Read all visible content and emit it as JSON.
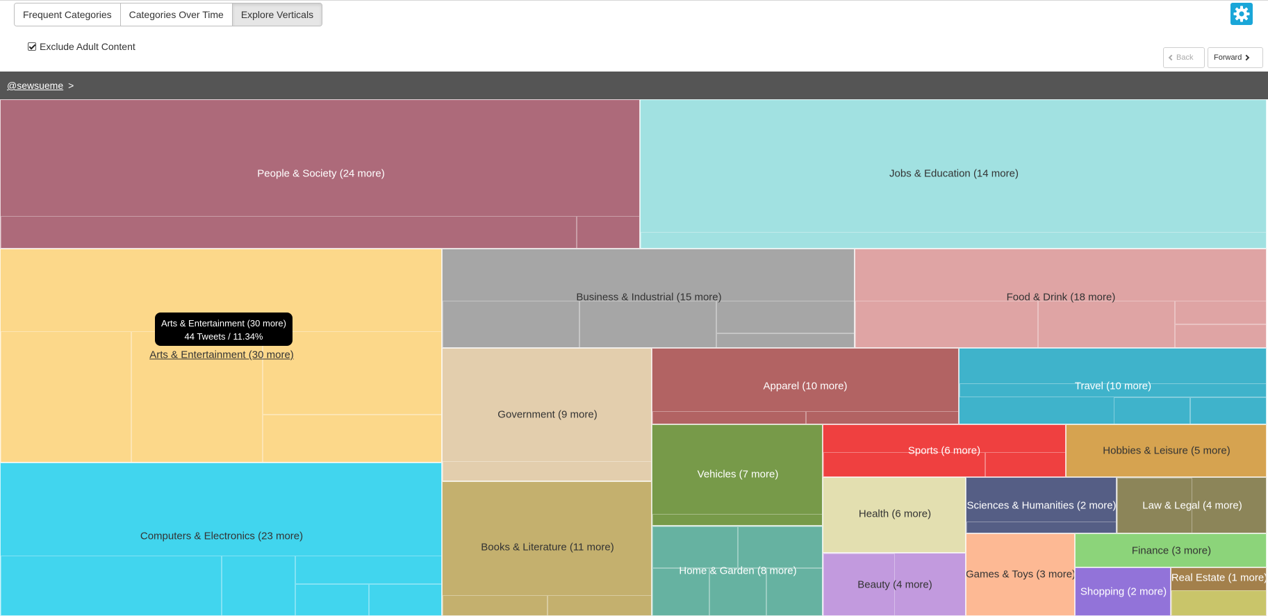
{
  "tabs": [
    {
      "label": "Frequent Categories",
      "active": false
    },
    {
      "label": "Categories Over Time",
      "active": false
    },
    {
      "label": "Explore Verticals",
      "active": true
    }
  ],
  "settings": {
    "icon": "gear-icon",
    "color": "#1aa6d8"
  },
  "filter": {
    "label": "Exclude Adult Content",
    "checked": true
  },
  "nav": {
    "back": "Back",
    "forward": "Forward"
  },
  "breadcrumb": {
    "user": "@sewsueme",
    "separator": ">"
  },
  "tooltip": {
    "title": "Arts & Entertainment (30 more)",
    "stats": "44 Tweets / 11.34%"
  },
  "chart_data": {
    "type": "treemap",
    "cells": [
      {
        "label": "People & Society (24 more)",
        "color": "#ad6a7a"
      },
      {
        "label": "Jobs & Education (14 more)",
        "color": "#a1e1e1"
      },
      {
        "label": "Arts & Entertainment (30 more)",
        "color": "#fcd88a",
        "tooltip": "44 Tweets / 11.34%"
      },
      {
        "label": "Business & Industrial (15 more)",
        "color": "#a6a6a6"
      },
      {
        "label": "Food & Drink (18 more)",
        "color": "#dfa4a4"
      },
      {
        "label": "Government (9 more)",
        "color": "#e3cead"
      },
      {
        "label": "Apparel (10 more)",
        "color": "#b26363"
      },
      {
        "label": "Travel (10 more)",
        "color": "#3fb3cb"
      },
      {
        "label": "Computers & Electronics (23 more)",
        "color": "#41d5ee"
      },
      {
        "label": "Vehicles (7 more)",
        "color": "#779a49"
      },
      {
        "label": "Sports (6 more)",
        "color": "#ef4040"
      },
      {
        "label": "Hobbies & Leisure (5 more)",
        "color": "#d6a350"
      },
      {
        "label": "Books & Literature (11 more)",
        "color": "#c4b06e"
      },
      {
        "label": "Health (6 more)",
        "color": "#e3dfb0"
      },
      {
        "label": "Sciences & Humanities (2 more)",
        "color": "#555e85"
      },
      {
        "label": "Law & Legal (4 more)",
        "color": "#8c8559"
      },
      {
        "label": "Home & Garden (8 more)",
        "color": "#66b2a1"
      },
      {
        "label": "Beauty (4 more)",
        "color": "#c29ade"
      },
      {
        "label": "Games & Toys (3 more)",
        "color": "#fdb994"
      },
      {
        "label": "Finance (3 more)",
        "color": "#8cd47a"
      },
      {
        "label": "Shopping (2 more)",
        "color": "#9273d9"
      },
      {
        "label": "Real Estate (1 more)",
        "color": "#a3804b"
      }
    ]
  }
}
